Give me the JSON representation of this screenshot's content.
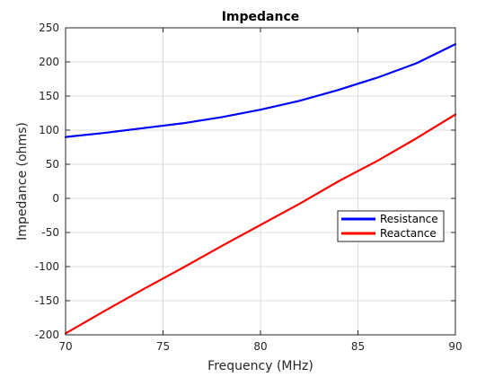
{
  "chart_data": {
    "type": "line",
    "title": "Impedance",
    "xlabel": "Frequency (MHz)",
    "ylabel": "Impedance (ohms)",
    "xlim": [
      70,
      90
    ],
    "ylim": [
      -200,
      250
    ],
    "xticks": [
      70,
      75,
      80,
      85,
      90
    ],
    "yticks": [
      -200,
      -150,
      -100,
      -50,
      0,
      50,
      100,
      150,
      200,
      250
    ],
    "grid": true,
    "legend_position": "right",
    "x": [
      70,
      72,
      74,
      76,
      78,
      80,
      82,
      84,
      86,
      88,
      90
    ],
    "series": [
      {
        "name": "Resistance",
        "color": "#0000ff",
        "values": [
          90,
          96,
          103,
          110,
          119,
          130,
          143,
          159,
          177,
          198,
          226
        ]
      },
      {
        "name": "Reactance",
        "color": "#ff0000",
        "values": [
          -198,
          -165,
          -133,
          -102,
          -70,
          -39,
          -8,
          25,
          55,
          88,
          123
        ]
      }
    ]
  }
}
